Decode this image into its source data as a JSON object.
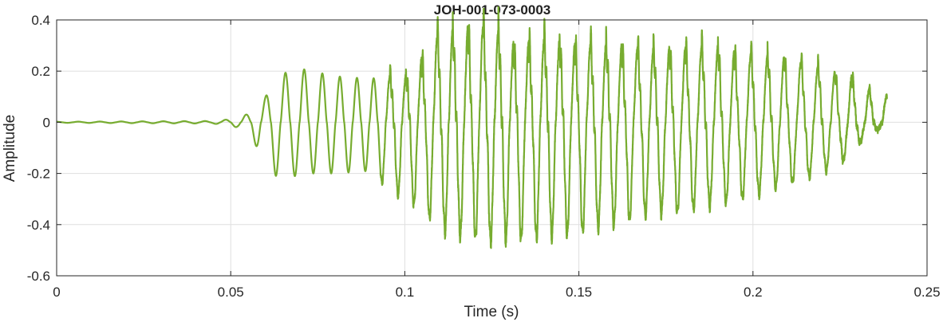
{
  "chart_data": {
    "type": "line",
    "title": "JOH-001-073-0003",
    "xlabel": "Time (s)",
    "ylabel": "Amplitude",
    "xlim": [
      0,
      0.25
    ],
    "ylim": [
      -0.6,
      0.4
    ],
    "xticks": [
      0,
      0.05,
      0.1,
      0.15,
      0.2,
      0.25
    ],
    "xtick_labels": [
      "0",
      "0.05",
      "0.1",
      "0.15",
      "0.2",
      "0.25"
    ],
    "yticks": [
      -0.6,
      -0.4,
      -0.2,
      0,
      0.2,
      0.4
    ],
    "ytick_labels": [
      "-0.6",
      "-0.4",
      "-0.2",
      "0",
      "0.2",
      "0.4"
    ],
    "grid": true,
    "line_color": "#77ac30",
    "series": [
      {
        "x_start": 0,
        "x_end": 0.2385,
        "envelope": {
          "t": [
            0,
            0.045,
            0.052,
            0.056,
            0.06,
            0.063,
            0.067,
            0.07,
            0.08,
            0.09,
            0.095,
            0.1,
            0.105,
            0.11,
            0.115,
            0.12,
            0.125,
            0.13,
            0.14,
            0.15,
            0.16,
            0.17,
            0.18,
            0.19,
            0.2,
            0.21,
            0.22,
            0.228,
            0.232,
            0.235,
            0.2385
          ],
          "pos": [
            0.002,
            0.005,
            0.015,
            0.04,
            0.1,
            0.18,
            0.2,
            0.21,
            0.18,
            0.17,
            0.18,
            0.18,
            0.25,
            0.35,
            0.36,
            0.37,
            0.38,
            0.3,
            0.32,
            0.3,
            0.3,
            0.28,
            0.29,
            0.29,
            0.26,
            0.25,
            0.21,
            0.18,
            0.13,
            0.11,
            0.1
          ],
          "neg": [
            -0.002,
            -0.005,
            -0.02,
            -0.06,
            -0.16,
            -0.21,
            -0.22,
            -0.2,
            -0.2,
            -0.19,
            -0.26,
            -0.3,
            -0.34,
            -0.42,
            -0.44,
            -0.45,
            -0.47,
            -0.46,
            -0.45,
            -0.43,
            -0.4,
            -0.36,
            -0.35,
            -0.32,
            -0.29,
            -0.24,
            -0.2,
            -0.13,
            -0.06,
            -0.04,
            0
          ]
        },
        "pitch_hz": {
          "t": [
            0,
            0.05,
            0.06,
            0.08,
            0.1,
            0.12,
            0.15,
            0.2,
            0.2385
          ],
          "hz": [
            160,
            170,
            175,
            200,
            220,
            230,
            225,
            210,
            200
          ]
        }
      }
    ]
  }
}
